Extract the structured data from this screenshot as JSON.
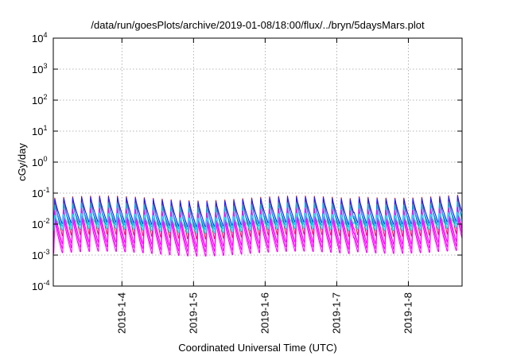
{
  "chart_data": {
    "type": "line",
    "title": "/data/run/goesPlots/archive/2019-01-08/18:00/flux/../bryn/5daysMars.plot",
    "xlabel": "Coordinated Universal Time (UTC)",
    "ylabel": "cGy/day",
    "yscale": "log",
    "ylim": [
      0.0001,
      10000
    ],
    "y_ticks": [
      {
        "base": "10",
        "exp": "-4",
        "value": 0.0001
      },
      {
        "base": "10",
        "exp": "-3",
        "value": 0.001
      },
      {
        "base": "10",
        "exp": "-2",
        "value": 0.01
      },
      {
        "base": "10",
        "exp": "-1",
        "value": 0.1
      },
      {
        "base": "10",
        "exp": "0",
        "value": 1
      },
      {
        "base": "10",
        "exp": "1",
        "value": 10
      },
      {
        "base": "10",
        "exp": "2",
        "value": 100
      },
      {
        "base": "10",
        "exp": "3",
        "value": 1000
      },
      {
        "base": "10",
        "exp": "4",
        "value": 10000
      }
    ],
    "xlim": [
      "2019-01-03 01:00",
      "2019-01-08 18:00"
    ],
    "x_ticks": [
      "2019-1-4",
      "2019-1-5",
      "2019-1-6",
      "2019-1-7",
      "2019-1-8"
    ],
    "grid": true,
    "pattern": "sawtooth with period of about 3 hours; fast rise to peak, decay to trough",
    "series": [
      {
        "color": "#e51e1e",
        "peak": 0.075,
        "trough": 0.0035
      },
      {
        "color": "#1a1aff",
        "peak": 0.068,
        "trough": 0.009
      },
      {
        "color": "#008b8b",
        "peak": 0.045,
        "trough": 0.0055
      },
      {
        "color": "#00b4ff",
        "peak": 0.042,
        "trough": 0.0075
      },
      {
        "color": "#ff00ff",
        "peak": 0.015,
        "trough": 0.001
      },
      {
        "color": "#ff00ff",
        "peak": 0.022,
        "trough": 0.0014
      },
      {
        "color": "#ff00ff",
        "peak": 0.03,
        "trough": 0.002
      },
      {
        "color": "#00ffff",
        "peak": 0.02,
        "trough": 0.006
      }
    ]
  }
}
